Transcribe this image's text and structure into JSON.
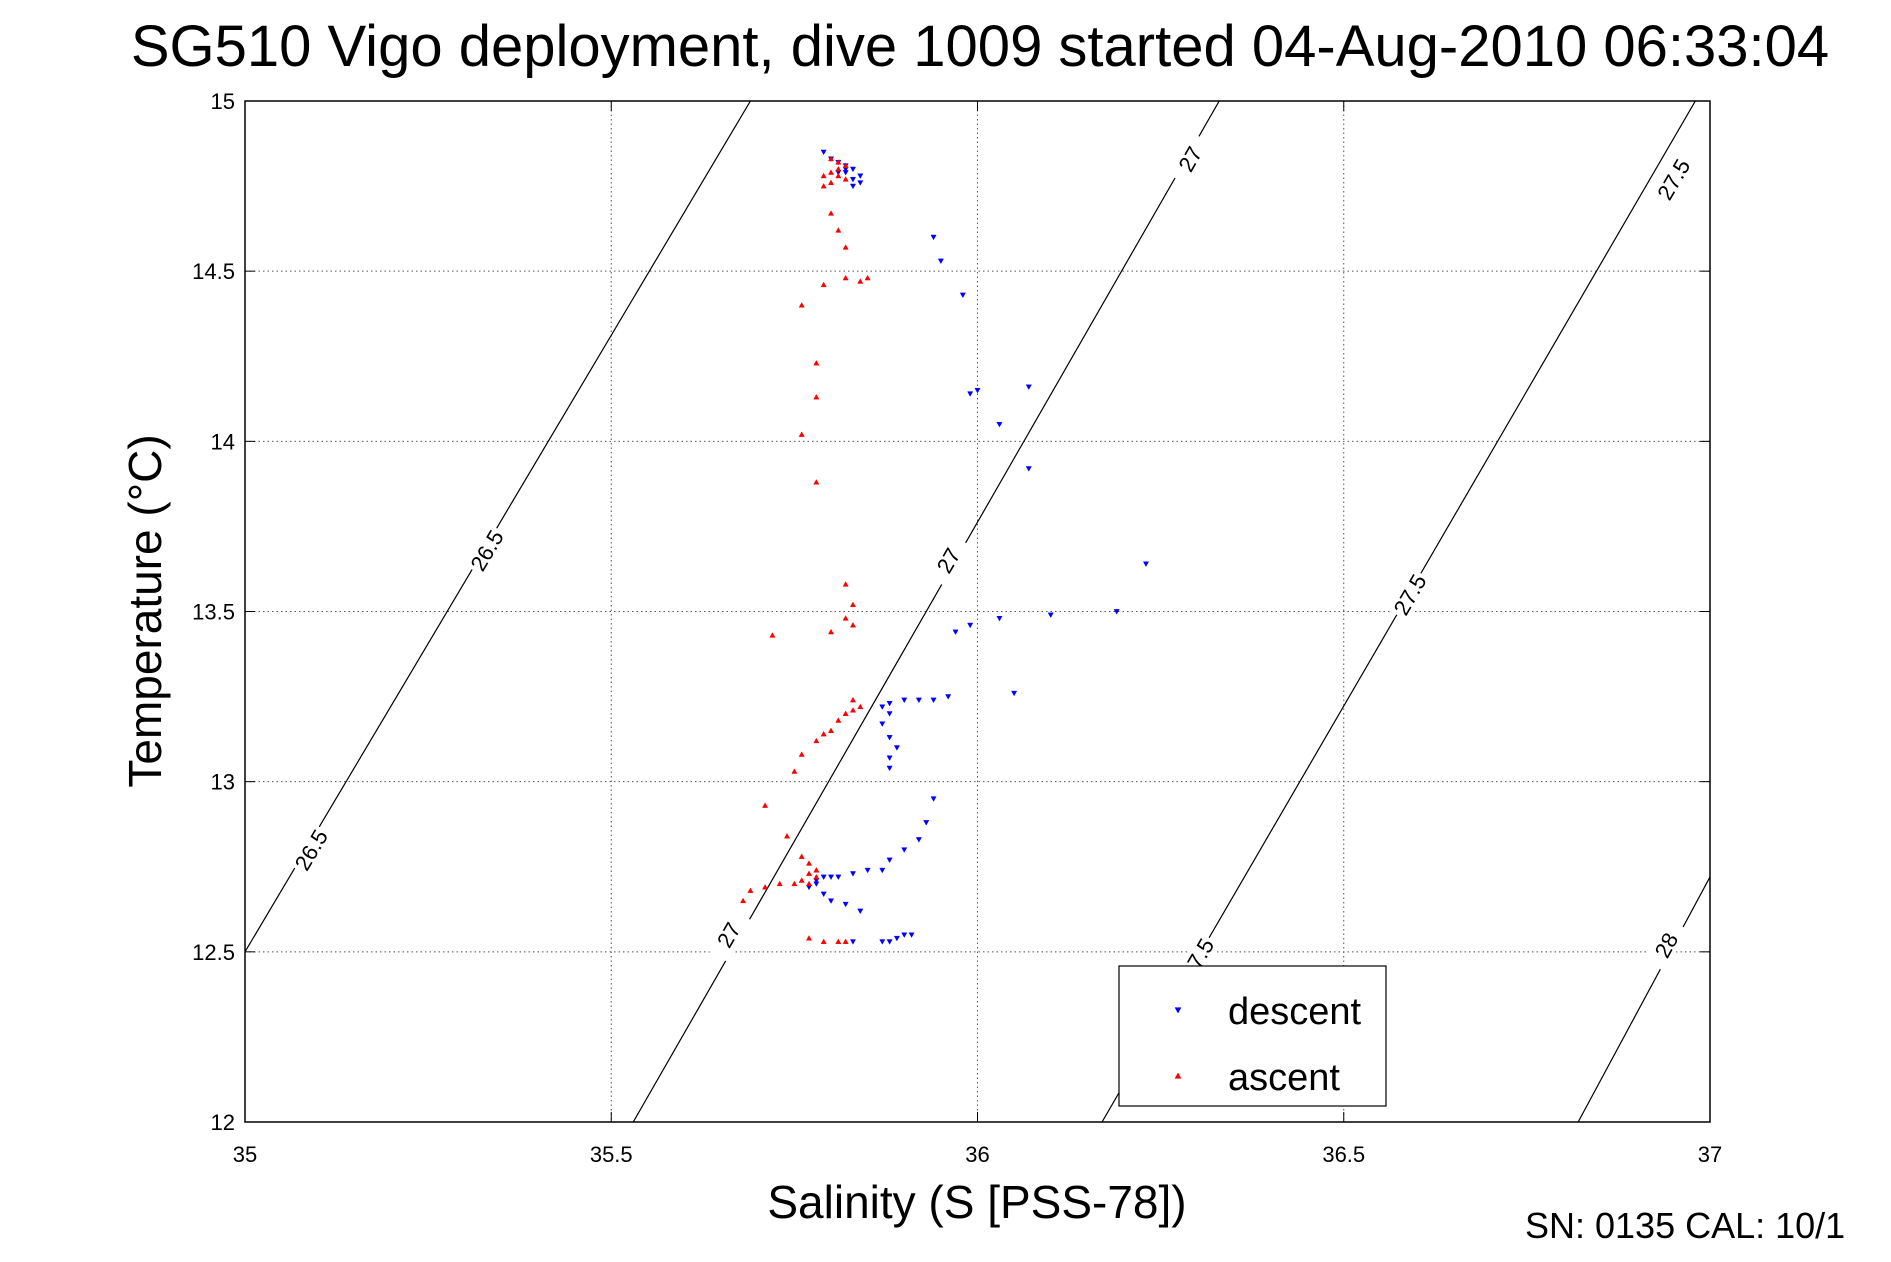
{
  "chart_data": {
    "type": "scatter",
    "title": "SG510 Vigo deployment, dive 1009 started 04-Aug-2010 06:33:04",
    "xlabel": "Salinity (S [PSS-78])",
    "ylabel": "Temperature (°C)",
    "xlim": [
      35,
      37
    ],
    "ylim": [
      12,
      15
    ],
    "xticks": [
      "35",
      "35.5",
      "36",
      "36.5",
      "37"
    ],
    "yticks": [
      "12",
      "12.5",
      "13",
      "13.5",
      "14",
      "14.5",
      "15"
    ],
    "grid": true,
    "legend_position": "bottom-right",
    "contours": [
      {
        "level": "26.5",
        "line": [
          [
            35.0,
            12.5
          ],
          [
            35.69,
            15.0
          ]
        ],
        "labels": [
          [
            35.33,
            13.68
          ],
          [
            35.09,
            12.8
          ]
        ]
      },
      {
        "level": "27",
        "line": [
          [
            35.53,
            12.0
          ],
          [
            36.33,
            15.0
          ]
        ],
        "labels": [
          [
            36.29,
            14.83
          ],
          [
            35.96,
            13.65
          ],
          [
            35.66,
            12.55
          ]
        ]
      },
      {
        "level": "27.5",
        "line": [
          [
            36.17,
            12.0
          ],
          [
            36.98,
            15.0
          ]
        ],
        "labels": [
          [
            36.95,
            14.77
          ],
          [
            36.59,
            13.55
          ],
          [
            36.3,
            12.48
          ]
        ]
      },
      {
        "level": "28",
        "line": [
          [
            36.82,
            12.0
          ],
          [
            37.0,
            12.72
          ]
        ],
        "labels": [
          [
            36.94,
            12.52
          ]
        ]
      }
    ],
    "series": [
      {
        "name": "descent",
        "color": "#0000ff",
        "marker": "triangle-down",
        "points": [
          [
            35.79,
            14.85
          ],
          [
            35.8,
            14.83
          ],
          [
            35.81,
            14.82
          ],
          [
            35.82,
            14.81
          ],
          [
            35.83,
            14.8
          ],
          [
            35.82,
            14.79
          ],
          [
            35.84,
            14.78
          ],
          [
            35.83,
            14.77
          ],
          [
            35.84,
            14.76
          ],
          [
            35.83,
            14.75
          ],
          [
            35.82,
            14.8
          ],
          [
            35.81,
            14.79
          ],
          [
            35.94,
            14.6
          ],
          [
            35.95,
            14.53
          ],
          [
            35.98,
            14.43
          ],
          [
            35.99,
            14.14
          ],
          [
            36.0,
            14.15
          ],
          [
            36.07,
            14.16
          ],
          [
            36.03,
            14.05
          ],
          [
            36.07,
            13.92
          ],
          [
            36.23,
            13.64
          ],
          [
            36.19,
            13.5
          ],
          [
            36.1,
            13.49
          ],
          [
            36.03,
            13.48
          ],
          [
            35.99,
            13.46
          ],
          [
            35.97,
            13.44
          ],
          [
            36.05,
            13.26
          ],
          [
            35.96,
            13.25
          ],
          [
            35.94,
            13.24
          ],
          [
            35.92,
            13.24
          ],
          [
            35.9,
            13.24
          ],
          [
            35.88,
            13.23
          ],
          [
            35.87,
            13.22
          ],
          [
            35.88,
            13.2
          ],
          [
            35.87,
            13.17
          ],
          [
            35.88,
            13.13
          ],
          [
            35.89,
            13.1
          ],
          [
            35.88,
            13.07
          ],
          [
            35.88,
            13.04
          ],
          [
            35.94,
            12.95
          ],
          [
            35.93,
            12.88
          ],
          [
            35.92,
            12.83
          ],
          [
            35.9,
            12.8
          ],
          [
            35.88,
            12.77
          ],
          [
            35.87,
            12.74
          ],
          [
            35.85,
            12.74
          ],
          [
            35.83,
            12.73
          ],
          [
            35.81,
            12.72
          ],
          [
            35.8,
            12.72
          ],
          [
            35.79,
            12.72
          ],
          [
            35.78,
            12.71
          ],
          [
            35.78,
            12.7
          ],
          [
            35.77,
            12.69
          ],
          [
            35.79,
            12.67
          ],
          [
            35.8,
            12.65
          ],
          [
            35.82,
            12.64
          ],
          [
            35.84,
            12.62
          ],
          [
            35.91,
            12.55
          ],
          [
            35.9,
            12.55
          ],
          [
            35.89,
            12.54
          ],
          [
            35.88,
            12.53
          ],
          [
            35.87,
            12.53
          ],
          [
            35.83,
            12.53
          ]
        ]
      },
      {
        "name": "ascent",
        "color": "#ff0000",
        "marker": "triangle-up",
        "points": [
          [
            35.8,
            14.83
          ],
          [
            35.81,
            14.82
          ],
          [
            35.82,
            14.81
          ],
          [
            35.81,
            14.8
          ],
          [
            35.8,
            14.79
          ],
          [
            35.81,
            14.78
          ],
          [
            35.79,
            14.78
          ],
          [
            35.8,
            14.76
          ],
          [
            35.79,
            14.75
          ],
          [
            35.82,
            14.77
          ],
          [
            35.8,
            14.67
          ],
          [
            35.81,
            14.62
          ],
          [
            35.82,
            14.57
          ],
          [
            35.79,
            14.46
          ],
          [
            35.82,
            14.48
          ],
          [
            35.84,
            14.47
          ],
          [
            35.85,
            14.48
          ],
          [
            35.76,
            14.4
          ],
          [
            35.78,
            14.23
          ],
          [
            35.78,
            14.13
          ],
          [
            35.76,
            14.02
          ],
          [
            35.78,
            13.88
          ],
          [
            35.82,
            13.58
          ],
          [
            35.83,
            13.52
          ],
          [
            35.82,
            13.48
          ],
          [
            35.83,
            13.46
          ],
          [
            35.8,
            13.44
          ],
          [
            35.72,
            13.43
          ],
          [
            35.83,
            13.24
          ],
          [
            35.84,
            13.22
          ],
          [
            35.83,
            13.21
          ],
          [
            35.82,
            13.2
          ],
          [
            35.81,
            13.18
          ],
          [
            35.8,
            13.15
          ],
          [
            35.79,
            13.14
          ],
          [
            35.78,
            13.12
          ],
          [
            35.76,
            13.08
          ],
          [
            35.75,
            13.03
          ],
          [
            35.71,
            12.93
          ],
          [
            35.74,
            12.84
          ],
          [
            35.76,
            12.78
          ],
          [
            35.77,
            12.76
          ],
          [
            35.78,
            12.74
          ],
          [
            35.77,
            12.73
          ],
          [
            35.78,
            12.72
          ],
          [
            35.76,
            12.71
          ],
          [
            35.77,
            12.7
          ],
          [
            35.75,
            12.7
          ],
          [
            35.73,
            12.7
          ],
          [
            35.71,
            12.69
          ],
          [
            35.69,
            12.68
          ],
          [
            35.68,
            12.65
          ],
          [
            35.77,
            12.54
          ],
          [
            35.79,
            12.53
          ],
          [
            35.81,
            12.53
          ],
          [
            35.82,
            12.53
          ]
        ]
      }
    ],
    "footer": "SN: 0135  CAL: 10/1"
  }
}
